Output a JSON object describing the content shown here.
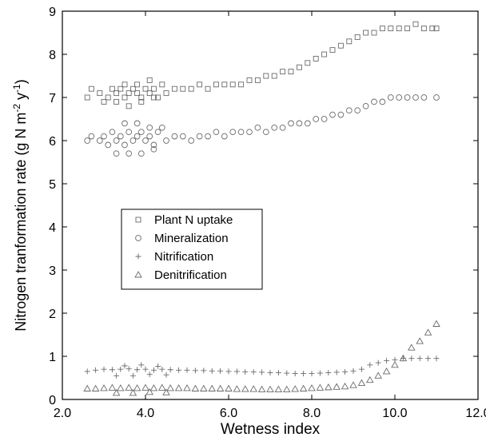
{
  "chart_data": {
    "type": "scatter",
    "title": "",
    "xlabel": "Wetness index",
    "ylabel_main": "Nitrogen tranformation rate (g N m",
    "ylabel_sup1": "-2",
    "ylabel_mid": " y",
    "ylabel_sup2": "-1",
    "ylabel_end": ")",
    "xlim": [
      2.0,
      12.0
    ],
    "ylim": [
      0,
      9
    ],
    "xticks": [
      2.0,
      4.0,
      6.0,
      8.0,
      10.0,
      12.0
    ],
    "xtick_labels": [
      "2.0",
      "4.0",
      "6.0",
      "8.0",
      "10.0",
      "12.0"
    ],
    "yticks": [
      0,
      1,
      2,
      3,
      4,
      5,
      6,
      7,
      8,
      9
    ],
    "ytick_labels": [
      "0",
      "1",
      "2",
      "3",
      "4",
      "5",
      "6",
      "7",
      "8",
      "9"
    ],
    "legend_position": "center-left",
    "series": [
      {
        "name": "Plant N uptake",
        "marker": "square",
        "x": [
          2.6,
          2.7,
          2.9,
          3.1,
          3.2,
          3.3,
          3.4,
          3.5,
          3.6,
          3.7,
          3.8,
          3.9,
          4.0,
          4.1,
          4.2,
          4.3,
          4.5,
          4.7,
          4.9,
          5.1,
          5.3,
          5.5,
          5.7,
          5.9,
          6.1,
          6.3,
          6.5,
          6.7,
          6.9,
          7.1,
          7.3,
          7.5,
          7.7,
          7.9,
          8.1,
          8.3,
          8.5,
          8.7,
          8.9,
          9.1,
          9.3,
          9.5,
          9.7,
          9.9,
          10.1,
          10.3,
          10.5,
          10.7,
          10.9,
          11.0,
          3.0,
          3.3,
          3.6,
          3.9,
          4.2,
          3.5,
          3.8,
          4.1,
          4.4
        ],
        "y": [
          7.0,
          7.2,
          7.1,
          7.0,
          7.2,
          7.1,
          7.2,
          7.0,
          7.1,
          7.2,
          7.1,
          7.0,
          7.2,
          7.1,
          7.2,
          7.0,
          7.1,
          7.2,
          7.2,
          7.2,
          7.3,
          7.2,
          7.3,
          7.3,
          7.3,
          7.3,
          7.4,
          7.4,
          7.5,
          7.5,
          7.6,
          7.6,
          7.7,
          7.8,
          7.9,
          8.0,
          8.1,
          8.2,
          8.3,
          8.4,
          8.5,
          8.5,
          8.6,
          8.6,
          8.6,
          8.6,
          8.7,
          8.6,
          8.6,
          8.6,
          6.9,
          6.9,
          6.8,
          6.9,
          7.0,
          7.3,
          7.3,
          7.4,
          7.3
        ]
      },
      {
        "name": "Mineralization",
        "marker": "circle",
        "x": [
          2.6,
          2.7,
          2.9,
          3.0,
          3.1,
          3.2,
          3.3,
          3.4,
          3.5,
          3.6,
          3.7,
          3.8,
          3.9,
          4.0,
          4.1,
          4.2,
          4.3,
          4.5,
          4.7,
          4.9,
          5.1,
          5.3,
          5.5,
          5.7,
          5.9,
          6.1,
          6.3,
          6.5,
          6.7,
          6.9,
          7.1,
          7.3,
          7.5,
          7.7,
          7.9,
          8.1,
          8.3,
          8.5,
          8.7,
          8.9,
          9.1,
          9.3,
          9.5,
          9.7,
          9.9,
          10.1,
          10.3,
          10.5,
          10.7,
          11.0,
          3.3,
          3.6,
          3.9,
          4.2,
          3.5,
          3.8,
          4.1,
          4.4
        ],
        "y": [
          6.0,
          6.1,
          6.0,
          6.1,
          5.9,
          6.2,
          6.0,
          6.1,
          5.9,
          6.2,
          6.0,
          6.1,
          6.2,
          6.0,
          6.1,
          5.9,
          6.2,
          6.0,
          6.1,
          6.1,
          6.0,
          6.1,
          6.1,
          6.2,
          6.1,
          6.2,
          6.2,
          6.2,
          6.3,
          6.2,
          6.3,
          6.3,
          6.4,
          6.4,
          6.4,
          6.5,
          6.5,
          6.6,
          6.6,
          6.7,
          6.7,
          6.8,
          6.9,
          6.9,
          7.0,
          7.0,
          7.0,
          7.0,
          7.0,
          7.0,
          5.7,
          5.7,
          5.7,
          5.8,
          6.4,
          6.4,
          6.3,
          6.3
        ]
      },
      {
        "name": "Nitrification",
        "marker": "plus",
        "x": [
          2.6,
          2.8,
          3.0,
          3.2,
          3.4,
          3.6,
          3.8,
          4.0,
          4.2,
          4.4,
          4.6,
          4.8,
          5.0,
          5.2,
          5.4,
          5.6,
          5.8,
          6.0,
          6.2,
          6.4,
          6.6,
          6.8,
          7.0,
          7.2,
          7.4,
          7.6,
          7.8,
          8.0,
          8.2,
          8.4,
          8.6,
          8.8,
          9.0,
          9.2,
          9.4,
          9.6,
          9.8,
          10.0,
          10.2,
          10.4,
          10.6,
          10.8,
          11.0,
          3.3,
          3.7,
          4.1,
          4.5,
          3.5,
          3.9,
          4.3
        ],
        "y": [
          0.65,
          0.68,
          0.7,
          0.69,
          0.7,
          0.71,
          0.69,
          0.7,
          0.68,
          0.7,
          0.69,
          0.68,
          0.68,
          0.67,
          0.67,
          0.66,
          0.66,
          0.65,
          0.65,
          0.64,
          0.64,
          0.63,
          0.62,
          0.62,
          0.61,
          0.6,
          0.6,
          0.6,
          0.61,
          0.62,
          0.63,
          0.64,
          0.66,
          0.7,
          0.8,
          0.85,
          0.9,
          0.92,
          0.95,
          0.95,
          0.95,
          0.95,
          0.95,
          0.55,
          0.55,
          0.58,
          0.57,
          0.78,
          0.8,
          0.77
        ]
      },
      {
        "name": "Denitrification",
        "marker": "triangle",
        "x": [
          2.6,
          2.8,
          3.0,
          3.2,
          3.4,
          3.6,
          3.8,
          4.0,
          4.2,
          4.4,
          4.6,
          4.8,
          5.0,
          5.2,
          5.4,
          5.6,
          5.8,
          6.0,
          6.2,
          6.4,
          6.6,
          6.8,
          7.0,
          7.2,
          7.4,
          7.6,
          7.8,
          8.0,
          8.2,
          8.4,
          8.6,
          8.8,
          9.0,
          9.2,
          9.4,
          9.6,
          9.8,
          10.0,
          10.2,
          10.4,
          10.6,
          10.8,
          11.0,
          3.3,
          3.7,
          4.1,
          4.5
        ],
        "y": [
          0.25,
          0.25,
          0.26,
          0.27,
          0.26,
          0.27,
          0.26,
          0.27,
          0.26,
          0.27,
          0.26,
          0.26,
          0.26,
          0.25,
          0.25,
          0.25,
          0.25,
          0.25,
          0.24,
          0.24,
          0.24,
          0.23,
          0.23,
          0.23,
          0.23,
          0.24,
          0.25,
          0.26,
          0.27,
          0.28,
          0.29,
          0.3,
          0.33,
          0.38,
          0.45,
          0.55,
          0.65,
          0.8,
          0.95,
          1.2,
          1.35,
          1.55,
          1.75,
          0.15,
          0.15,
          0.17,
          0.16
        ]
      }
    ]
  }
}
